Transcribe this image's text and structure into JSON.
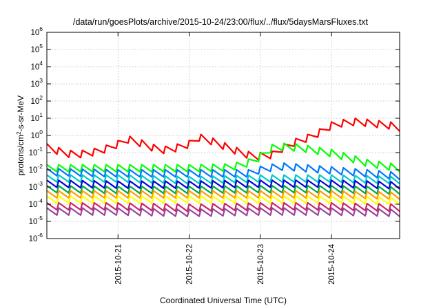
{
  "chart_data": {
    "type": "line",
    "title": "/data/run/goesPlots/archive/2015-10-24/23:00/flux/../flux/5daysMarsFluxes.txt",
    "xlabel": "Coordinated Universal Time (UTC)",
    "ylabel_parts": [
      "protons/cm",
      "2",
      "-s-sr-MeV"
    ],
    "y_scale": "log",
    "ylim": [
      1e-06,
      1000000.0
    ],
    "y_ticks": [
      {
        "base": "10",
        "exp": "-6"
      },
      {
        "base": "10",
        "exp": "-5"
      },
      {
        "base": "10",
        "exp": "-4"
      },
      {
        "base": "10",
        "exp": "-3"
      },
      {
        "base": "10",
        "exp": "-2"
      },
      {
        "base": "10",
        "exp": "-1"
      },
      {
        "base": "10",
        "exp": "0"
      },
      {
        "base": "10",
        "exp": "1"
      },
      {
        "base": "10",
        "exp": "2"
      },
      {
        "base": "10",
        "exp": "3"
      },
      {
        "base": "10",
        "exp": "4"
      },
      {
        "base": "10",
        "exp": "5"
      },
      {
        "base": "10",
        "exp": "6"
      }
    ],
    "xlim": [
      "2015-10-20T00:00",
      "2015-10-24T23:00"
    ],
    "x_ticks": [
      "2015-10-21",
      "2015-10-22",
      "2015-10-23",
      "2015-10-24"
    ],
    "grid": true,
    "legend": "none",
    "sawtooth_period_hours": 4,
    "series": [
      {
        "color": "#ff0000",
        "points": [
          [
            "2015-10-20T00:00",
            0.33
          ],
          [
            "2015-10-20T06:00",
            0.15
          ],
          [
            "2015-10-20T10:00",
            0.12
          ],
          [
            "2015-10-20T18:00",
            0.2
          ],
          [
            "2015-10-21T00:00",
            0.5
          ],
          [
            "2015-10-21T03:00",
            1.0
          ],
          [
            "2015-10-21T08:00",
            0.55
          ],
          [
            "2015-10-21T14:00",
            0.22
          ],
          [
            "2015-10-21T18:00",
            0.25
          ],
          [
            "2015-10-22T00:00",
            0.5
          ],
          [
            "2015-10-22T03:00",
            1.3
          ],
          [
            "2015-10-22T08:00",
            0.7
          ],
          [
            "2015-10-22T16:00",
            0.2
          ],
          [
            "2015-10-22T22:00",
            0.09
          ],
          [
            "2015-10-23T00:00",
            0.1
          ],
          [
            "2015-10-23T04:00",
            0.12
          ],
          [
            "2015-10-23T06:00",
            0.2
          ],
          [
            "2015-10-23T10:00",
            0.5
          ],
          [
            "2015-10-23T18:00",
            1.5
          ],
          [
            "2015-10-23T21:00",
            3.0
          ],
          [
            "2015-10-24T00:00",
            6.0
          ],
          [
            "2015-10-24T03:00",
            8.0
          ],
          [
            "2015-10-24T08:00",
            10.0
          ],
          [
            "2015-10-24T14:00",
            8.0
          ],
          [
            "2015-10-24T20:00",
            6.0
          ],
          [
            "2015-10-24T23:00",
            4.5
          ]
        ]
      },
      {
        "color": "#00ff00",
        "points": [
          [
            "2015-10-20T00:00",
            0.02
          ],
          [
            "2015-10-21T00:00",
            0.02
          ],
          [
            "2015-10-22T00:00",
            0.02
          ],
          [
            "2015-10-22T12:00",
            0.022
          ],
          [
            "2015-10-22T18:00",
            0.03
          ],
          [
            "2015-10-22T23:00",
            0.07
          ],
          [
            "2015-10-23T04:00",
            0.3
          ],
          [
            "2015-10-23T08:00",
            0.35
          ],
          [
            "2015-10-23T14:00",
            0.3
          ],
          [
            "2015-10-24T00:00",
            0.15
          ],
          [
            "2015-10-24T06:00",
            0.08
          ],
          [
            "2015-10-24T12:00",
            0.04
          ],
          [
            "2015-10-24T23:00",
            0.02
          ]
        ]
      },
      {
        "color": "#0077ff",
        "points": [
          [
            "2015-10-20T00:00",
            0.012
          ],
          [
            "2015-10-21T00:00",
            0.01
          ],
          [
            "2015-10-22T00:00",
            0.01
          ],
          [
            "2015-10-22T20:00",
            0.01
          ],
          [
            "2015-10-23T02:00",
            0.02
          ],
          [
            "2015-10-23T08:00",
            0.025
          ],
          [
            "2015-10-24T00:00",
            0.015
          ],
          [
            "2015-10-24T23:00",
            0.007
          ]
        ]
      },
      {
        "color": "#00c8c8",
        "points": [
          [
            "2015-10-20T00:00",
            0.005
          ],
          [
            "2015-10-21T00:00",
            0.005
          ],
          [
            "2015-10-22T00:00",
            0.004
          ],
          [
            "2015-10-23T00:00",
            0.005
          ],
          [
            "2015-10-24T00:00",
            0.005
          ],
          [
            "2015-10-24T23:00",
            0.004
          ]
        ]
      },
      {
        "color": "#0000dd",
        "points": [
          [
            "2015-10-20T00:00",
            0.0025
          ],
          [
            "2015-10-21T00:00",
            0.0022
          ],
          [
            "2015-10-22T00:00",
            0.0022
          ],
          [
            "2015-10-23T00:00",
            0.0025
          ],
          [
            "2015-10-24T00:00",
            0.0025
          ],
          [
            "2015-10-24T23:00",
            0.002
          ]
        ]
      },
      {
        "color": "#00aa44",
        "points": [
          [
            "2015-10-20T00:00",
            0.0012
          ],
          [
            "2015-10-21T00:00",
            0.0011
          ],
          [
            "2015-10-22T00:00",
            0.0011
          ],
          [
            "2015-10-23T00:00",
            0.0012
          ],
          [
            "2015-10-24T00:00",
            0.0012
          ],
          [
            "2015-10-24T23:00",
            0.001
          ]
        ]
      },
      {
        "color": "#ff9900",
        "points": [
          [
            "2015-10-20T00:00",
            0.0006
          ],
          [
            "2015-10-21T00:00",
            0.0006
          ],
          [
            "2015-10-22T00:00",
            0.0006
          ],
          [
            "2015-10-23T00:00",
            0.0006
          ],
          [
            "2015-10-24T00:00",
            0.0006
          ],
          [
            "2015-10-24T23:00",
            0.0005
          ]
        ]
      },
      {
        "color": "#ffff00",
        "points": [
          [
            "2015-10-20T00:00",
            0.0003
          ],
          [
            "2015-10-21T00:00",
            0.0003
          ],
          [
            "2015-10-22T00:00",
            0.0003
          ],
          [
            "2015-10-23T00:00",
            0.0003
          ],
          [
            "2015-10-24T00:00",
            0.0003
          ],
          [
            "2015-10-24T23:00",
            0.00025
          ]
        ]
      },
      {
        "color": "#cc2266",
        "points": [
          [
            "2015-10-20T00:00",
            0.00012
          ],
          [
            "2015-10-21T00:00",
            0.00012
          ],
          [
            "2015-10-22T00:00",
            0.0001
          ],
          [
            "2015-10-23T00:00",
            0.00012
          ],
          [
            "2015-10-24T00:00",
            0.00012
          ],
          [
            "2015-10-24T23:00",
            0.0001
          ]
        ]
      },
      {
        "color": "#994499",
        "points": [
          [
            "2015-10-20T00:00",
            6e-05
          ],
          [
            "2015-10-21T00:00",
            6e-05
          ],
          [
            "2015-10-22T00:00",
            5e-05
          ],
          [
            "2015-10-23T00:00",
            6e-05
          ],
          [
            "2015-10-24T00:00",
            6e-05
          ],
          [
            "2015-10-24T23:00",
            5e-05
          ]
        ]
      }
    ]
  }
}
